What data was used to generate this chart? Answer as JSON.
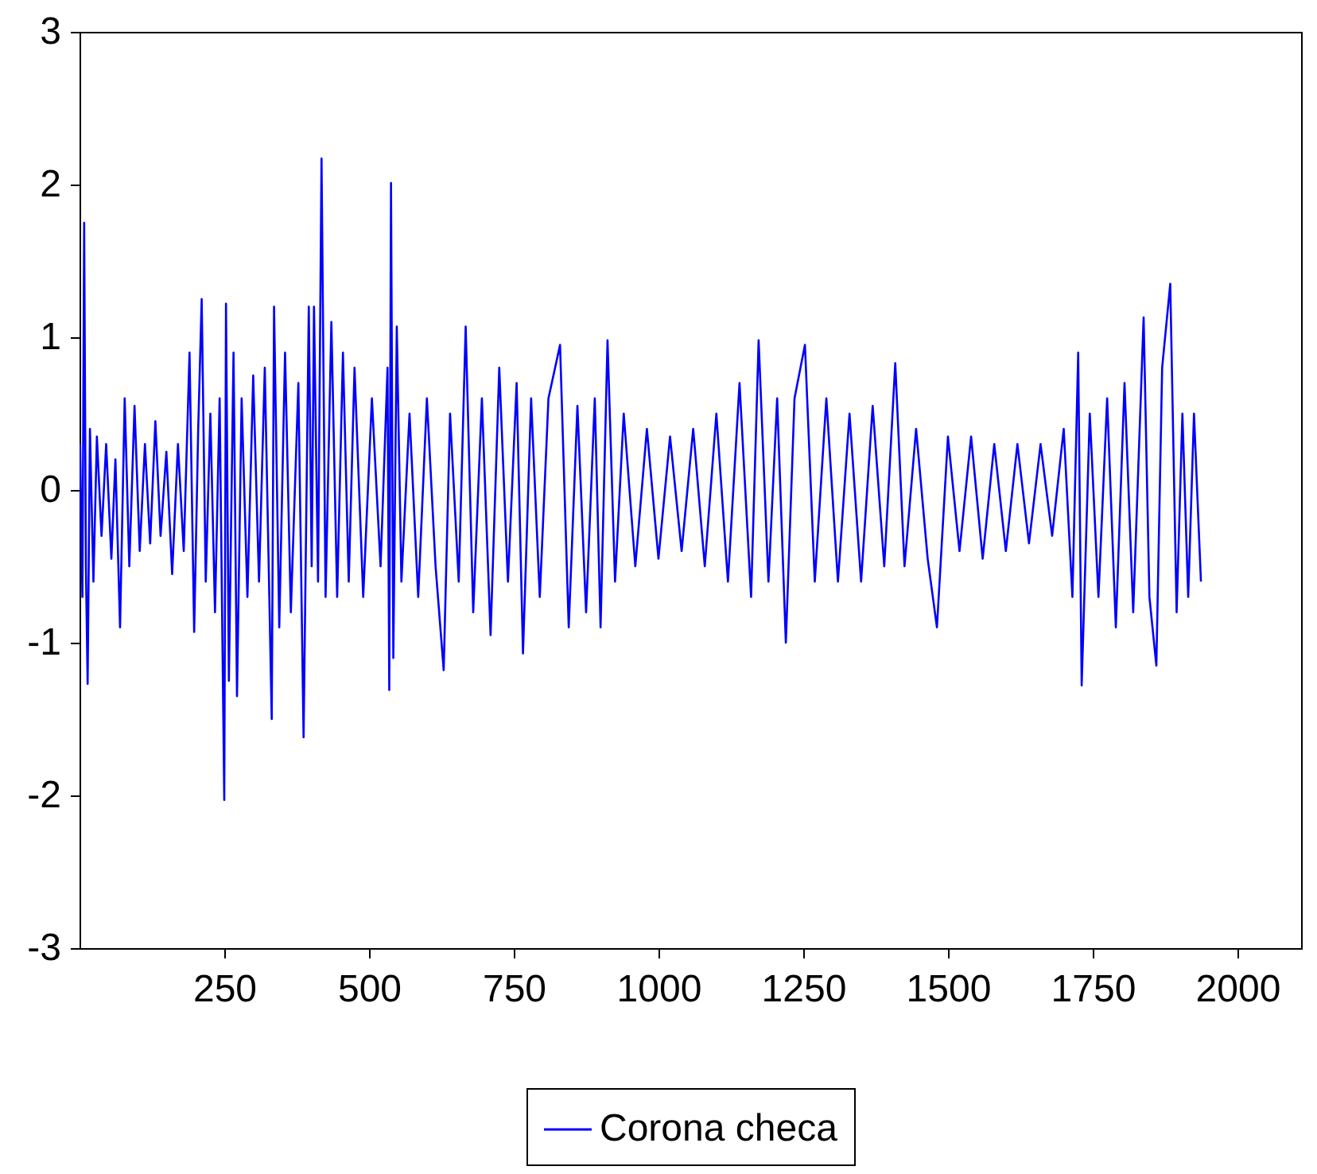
{
  "chart_data": {
    "type": "line",
    "xlim": [
      0,
      2110
    ],
    "xticks": [
      250,
      500,
      750,
      1000,
      1250,
      1500,
      1750,
      2000
    ],
    "ylim": [
      -3,
      3
    ],
    "yticks": [
      -3,
      -2,
      -1,
      0,
      1,
      2,
      3
    ],
    "grid": false,
    "legend": "bottom",
    "x": [
      1,
      5,
      8,
      11,
      14,
      18,
      24,
      30,
      38,
      46,
      55,
      62,
      70,
      78,
      86,
      95,
      104,
      113,
      122,
      131,
      140,
      150,
      160,
      170,
      180,
      190,
      198,
      205,
      211,
      218,
      226,
      234,
      242,
      250,
      253,
      258,
      266,
      272,
      280,
      290,
      300,
      310,
      320,
      332,
      336,
      345,
      355,
      365,
      378,
      387,
      396,
      401,
      405,
      412,
      418,
      425,
      435,
      445,
      455,
      465,
      475,
      490,
      505,
      520,
      532,
      535,
      538,
      542,
      548,
      556,
      570,
      585,
      600,
      615,
      629,
      640,
      655,
      667,
      680,
      695,
      710,
      725,
      740,
      755,
      766,
      780,
      795,
      810,
      830,
      845,
      860,
      875,
      890,
      900,
      912,
      925,
      940,
      960,
      980,
      1000,
      1020,
      1040,
      1060,
      1080,
      1100,
      1120,
      1140,
      1160,
      1173,
      1190,
      1205,
      1220,
      1235,
      1253,
      1270,
      1290,
      1310,
      1330,
      1350,
      1370,
      1390,
      1409,
      1425,
      1445,
      1465,
      1481,
      1500,
      1520,
      1540,
      1560,
      1580,
      1600,
      1620,
      1640,
      1660,
      1680,
      1700,
      1715,
      1725,
      1731,
      1745,
      1760,
      1775,
      1790,
      1805,
      1820,
      1838,
      1848,
      1860,
      1870,
      1884,
      1895,
      1905,
      1915,
      1925,
      1937
    ],
    "series": [
      {
        "name": "Corona checa",
        "color": "#0000ff",
        "values": [
          0.3,
          -0.7,
          1.75,
          -0.5,
          -1.27,
          0.4,
          -0.6,
          0.35,
          -0.3,
          0.3,
          -0.45,
          0.2,
          -0.9,
          0.6,
          -0.5,
          0.55,
          -0.4,
          0.3,
          -0.35,
          0.45,
          -0.3,
          0.25,
          -0.55,
          0.3,
          -0.4,
          0.9,
          -0.93,
          0.4,
          1.25,
          -0.6,
          0.5,
          -0.8,
          0.6,
          -2.03,
          1.22,
          -1.25,
          0.9,
          -1.35,
          0.6,
          -0.7,
          0.75,
          -0.6,
          0.8,
          -1.5,
          1.2,
          -0.9,
          0.9,
          -0.8,
          0.7,
          -1.62,
          1.2,
          -0.5,
          1.2,
          -0.6,
          2.17,
          -0.7,
          1.1,
          -0.7,
          0.9,
          -0.6,
          0.8,
          -0.7,
          0.6,
          -0.5,
          0.8,
          -1.31,
          2.01,
          -1.1,
          1.07,
          -0.6,
          0.5,
          -0.7,
          0.6,
          -0.5,
          -1.18,
          0.5,
          -0.6,
          1.07,
          -0.8,
          0.6,
          -0.95,
          0.8,
          -0.6,
          0.7,
          -1.07,
          0.6,
          -0.7,
          0.6,
          0.95,
          -0.9,
          0.55,
          -0.8,
          0.6,
          -0.9,
          0.98,
          -0.6,
          0.5,
          -0.5,
          0.4,
          -0.45,
          0.35,
          -0.4,
          0.4,
          -0.5,
          0.5,
          -0.6,
          0.7,
          -0.7,
          0.98,
          -0.6,
          0.6,
          -1.0,
          0.6,
          0.95,
          -0.6,
          0.6,
          -0.6,
          0.5,
          -0.6,
          0.55,
          -0.5,
          0.83,
          -0.5,
          0.4,
          -0.45,
          -0.9,
          0.35,
          -0.4,
          0.35,
          -0.45,
          0.3,
          -0.4,
          0.3,
          -0.35,
          0.3,
          -0.3,
          0.4,
          -0.7,
          0.9,
          -1.28,
          0.5,
          -0.7,
          0.6,
          -0.9,
          0.7,
          -0.8,
          1.13,
          -0.7,
          -1.15,
          0.8,
          1.35,
          -0.8,
          0.5,
          -0.7,
          0.5,
          -0.6
        ]
      }
    ]
  }
}
